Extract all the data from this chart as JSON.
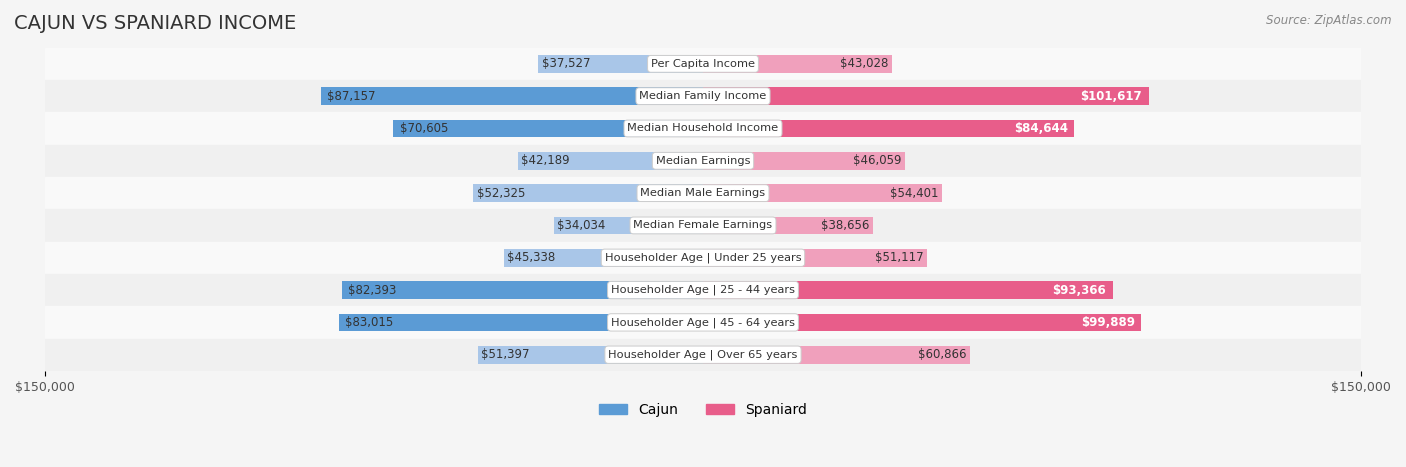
{
  "title": "CAJUN VS SPANIARD INCOME",
  "source": "Source: ZipAtlas.com",
  "categories": [
    "Per Capita Income",
    "Median Family Income",
    "Median Household Income",
    "Median Earnings",
    "Median Male Earnings",
    "Median Female Earnings",
    "Householder Age | Under 25 years",
    "Householder Age | 25 - 44 years",
    "Householder Age | 45 - 64 years",
    "Householder Age | Over 65 years"
  ],
  "cajun_values": [
    37527,
    87157,
    70605,
    42189,
    52325,
    34034,
    45338,
    82393,
    83015,
    51397
  ],
  "spaniard_values": [
    43028,
    101617,
    84644,
    46059,
    54401,
    38656,
    51117,
    93366,
    99889,
    60866
  ],
  "cajun_labels": [
    "$37,527",
    "$87,157",
    "$70,605",
    "$42,189",
    "$52,325",
    "$34,034",
    "$45,338",
    "$82,393",
    "$83,015",
    "$51,397"
  ],
  "spaniard_labels": [
    "$43,028",
    "$101,617",
    "$84,644",
    "$46,059",
    "$54,401",
    "$38,656",
    "$51,117",
    "$93,366",
    "$99,889",
    "$60,866"
  ],
  "cajun_color_strong": "#5b9bd5",
  "cajun_color_light": "#a9c6e8",
  "spaniard_color_strong": "#e85d8a",
  "spaniard_color_light": "#f0a0bc",
  "max_value": 150000,
  "background_color": "#f5f5f5",
  "row_bg_color": "#ffffff",
  "title_fontsize": 14,
  "label_fontsize": 9,
  "tick_fontsize": 9,
  "legend_fontsize": 10
}
